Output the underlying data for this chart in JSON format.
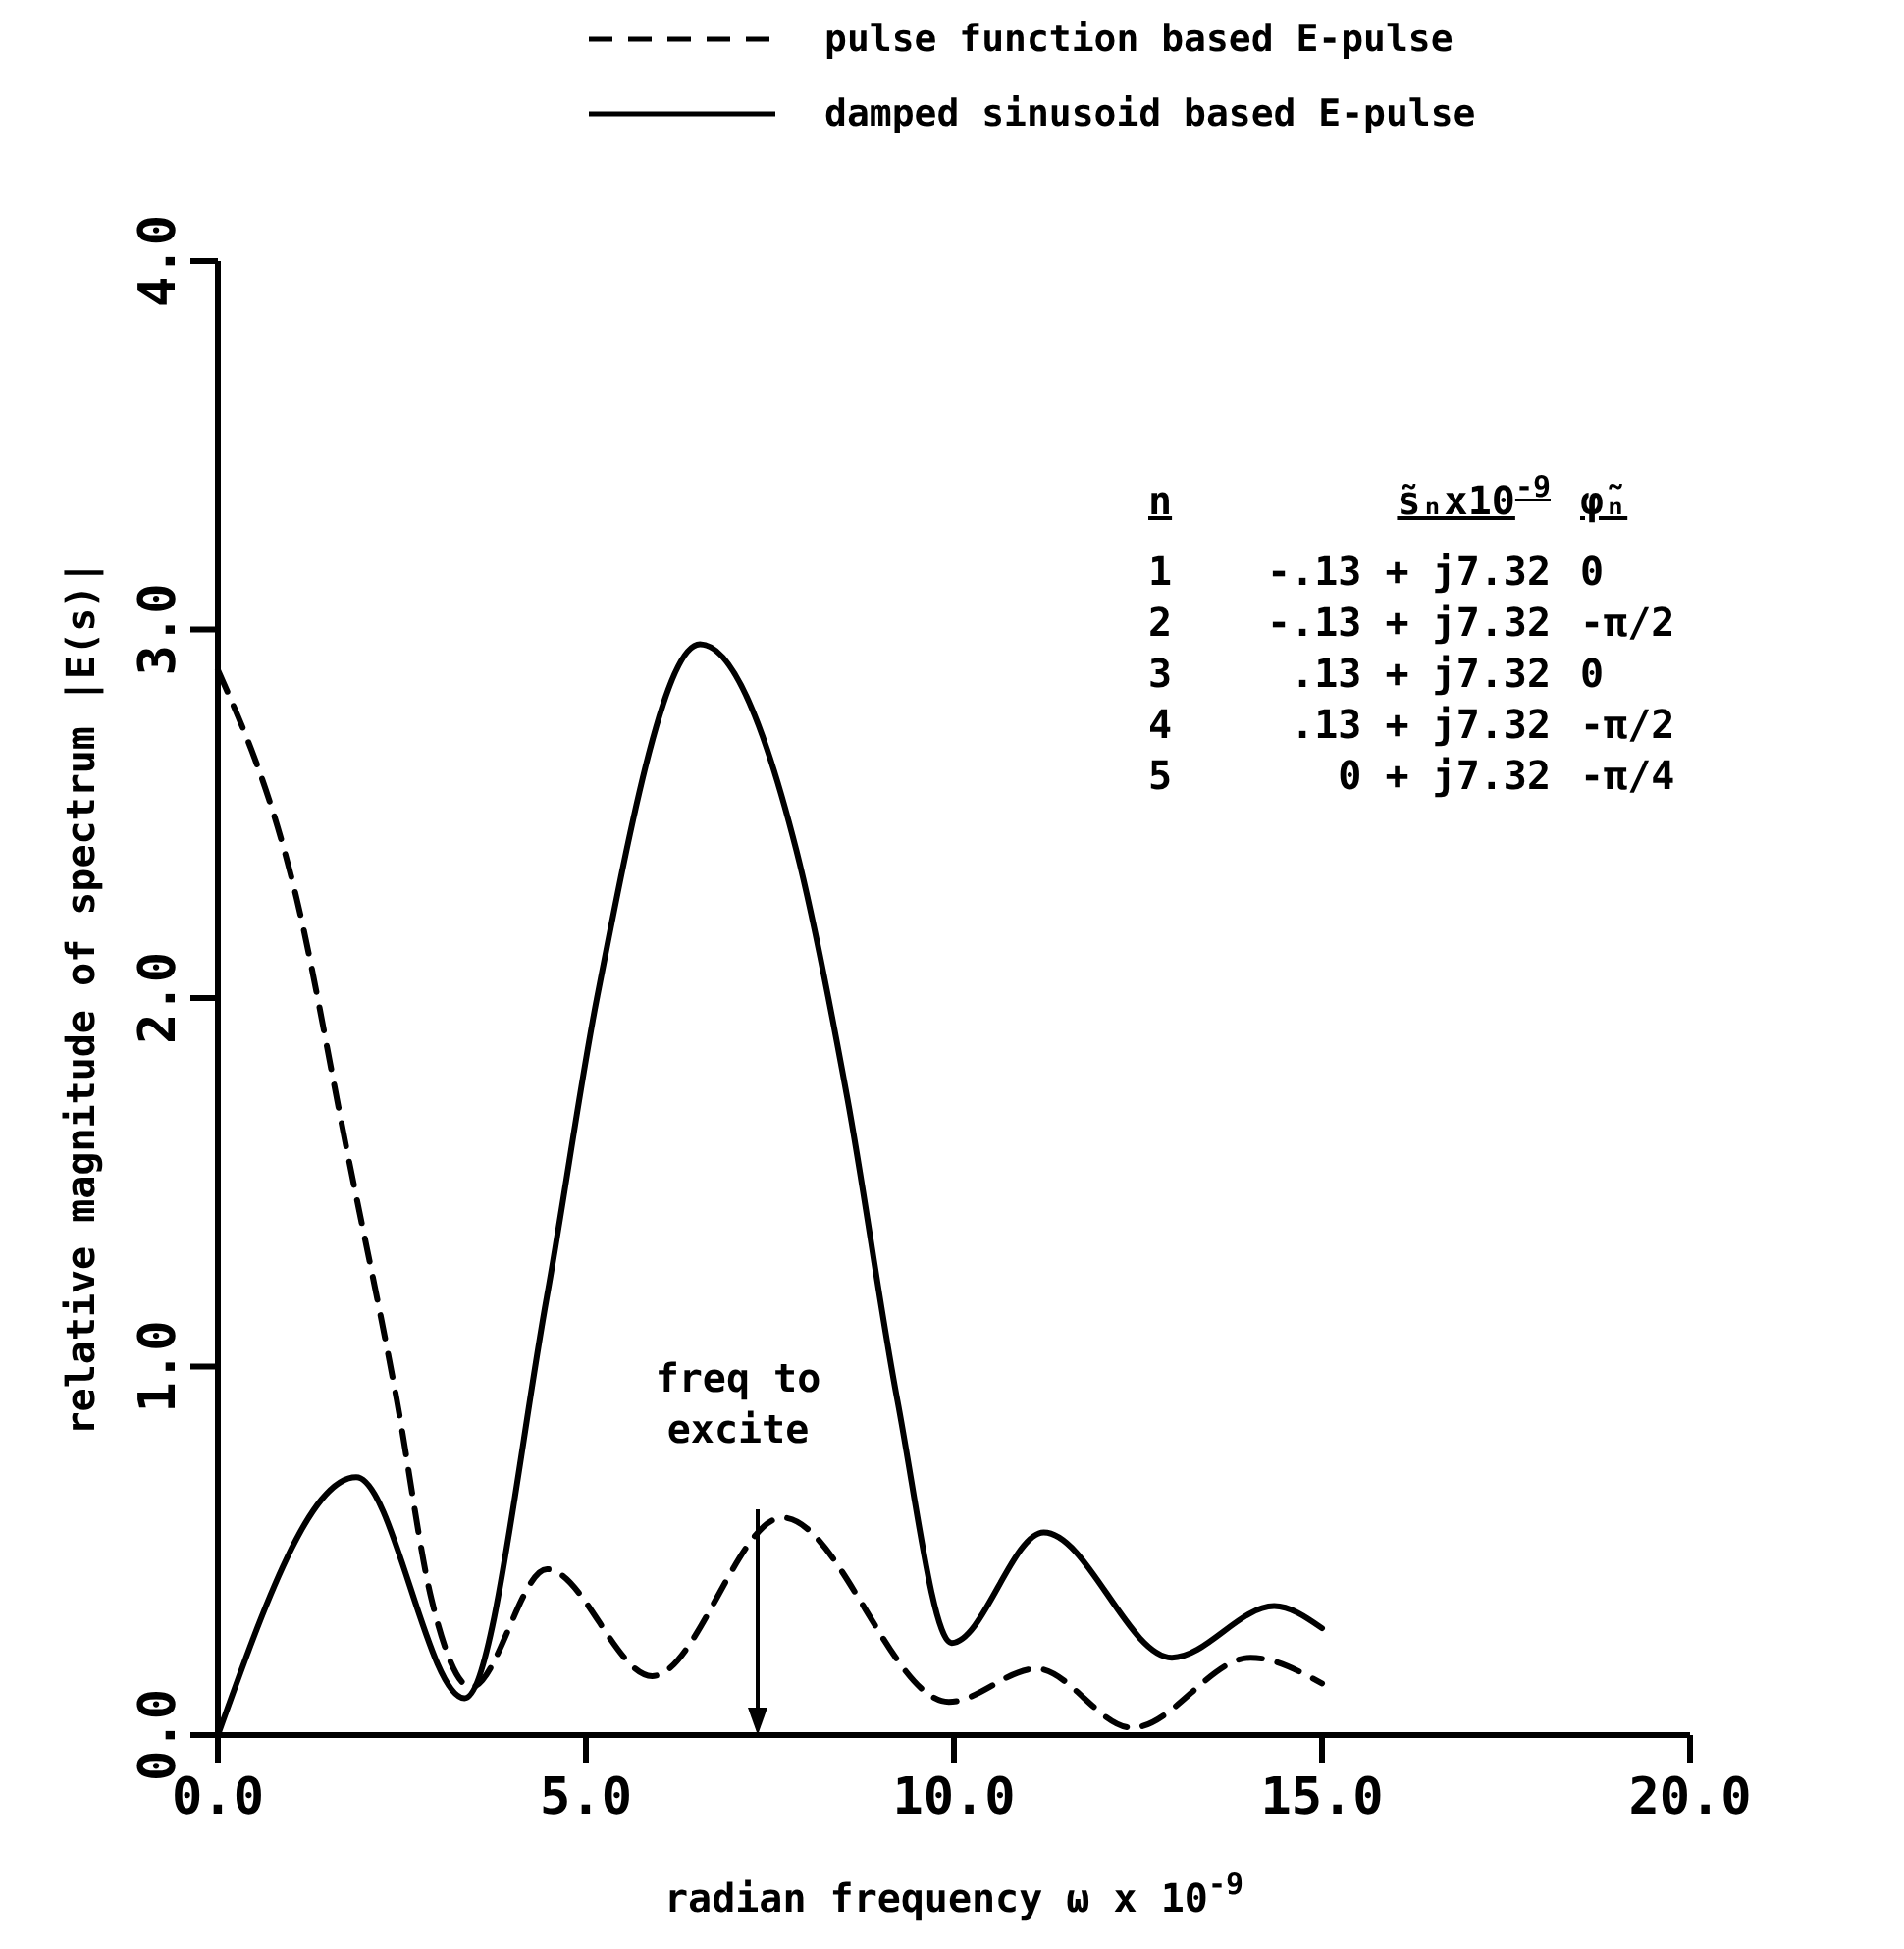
{
  "chart_data": {
    "type": "line",
    "xlabel": "radian frequency ω x 10$^{-9}$",
    "ylabel": "relative magnitude of spectrum |E(s)|",
    "xlim": [
      0,
      20
    ],
    "ylim": [
      0,
      4
    ],
    "xticks": [
      {
        "value": 0,
        "label": "0.0"
      },
      {
        "value": 5,
        "label": "5.0"
      },
      {
        "value": 10,
        "label": "10.0"
      },
      {
        "value": 15,
        "label": "15.0"
      },
      {
        "value": 20,
        "label": "20.0"
      }
    ],
    "yticks": [
      {
        "value": 0,
        "label": "0.0"
      },
      {
        "value": 1,
        "label": "1.0"
      },
      {
        "value": 2,
        "label": "2.0"
      },
      {
        "value": 3,
        "label": "3.0"
      },
      {
        "value": 4,
        "label": "4.0"
      }
    ],
    "grid": false,
    "legend": "top",
    "series": [
      {
        "name": "pulse function based E-pulse",
        "color": "#000000",
        "line_style": "dashed",
        "x": [
          0,
          1.07,
          1.75,
          2.43,
          2.9,
          3.44,
          4.47,
          5.9,
          7.67,
          9.93,
          11.12,
          12.42,
          14.03,
          15
        ],
        "values": [
          2.89,
          2.27,
          1.59,
          0.91,
          0.37,
          0.13,
          0.45,
          0.16,
          0.59,
          0.09,
          0.18,
          0.02,
          0.21,
          0.14
        ]
      },
      {
        "name": "damped sinusoid based E-pulse",
        "color": "#000000",
        "line_style": "solid",
        "x": [
          0,
          1.88,
          3.35,
          4.47,
          5.15,
          6.55,
          7.86,
          8.55,
          9.23,
          9.97,
          11.22,
          12.96,
          14.35,
          15
        ],
        "values": [
          0,
          0.7,
          0.1,
          1.19,
          2.0,
          2.96,
          2.4,
          1.73,
          0.91,
          0.25,
          0.55,
          0.21,
          0.35,
          0.29
        ]
      }
    ],
    "annotations": [
      "n",
      "s̃ₙx10$^{-9}$",
      "φ̃ₙ",
      "1",
      "-.13 + j7.32",
      "0",
      "2",
      "-.13 + j7.32",
      "-π/2",
      "3",
      ".13 + j7.32",
      "0",
      "4",
      ".13 + j7.32",
      "-π/2",
      "5",
      "0 + j7.32",
      "-π/4",
      "freq to\nexcite"
    ]
  }
}
